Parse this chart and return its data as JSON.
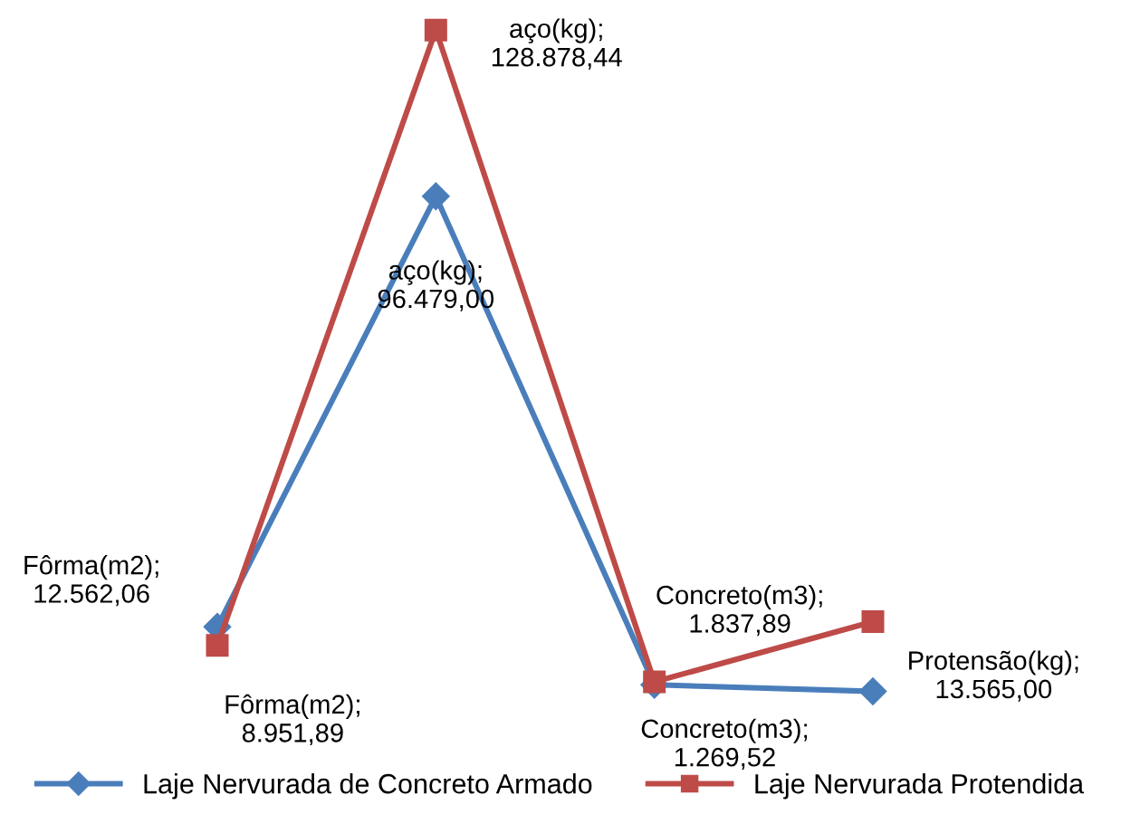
{
  "chart_data": {
    "type": "line",
    "categories": [
      null,
      null,
      null,
      null
    ],
    "series": [
      {
        "name": "Laje Nervurada de Concreto Armado",
        "color": "#4a7ebb",
        "marker": "diamond",
        "values": [
          12562.06,
          96479.0,
          1269.52,
          0
        ],
        "value_labels": [
          "Fôrma(m2);\n12.562,06",
          "aço(kg);\n96.479,00",
          "Concreto(m3);\n1.269,52",
          null
        ]
      },
      {
        "name": "Laje Nervurada Protendida",
        "color": "#be4b48",
        "marker": "square",
        "values": [
          8951.89,
          128878.44,
          1837.89,
          13565.0
        ],
        "value_labels": [
          "Fôrma(m2);\n8.951,89",
          "aço(kg);\n128.878,44",
          "Concreto(m3);\n1.837,89",
          "Protensão(kg);\n13.565,00"
        ]
      }
    ],
    "legend": "bottom",
    "line_style": "solid"
  }
}
